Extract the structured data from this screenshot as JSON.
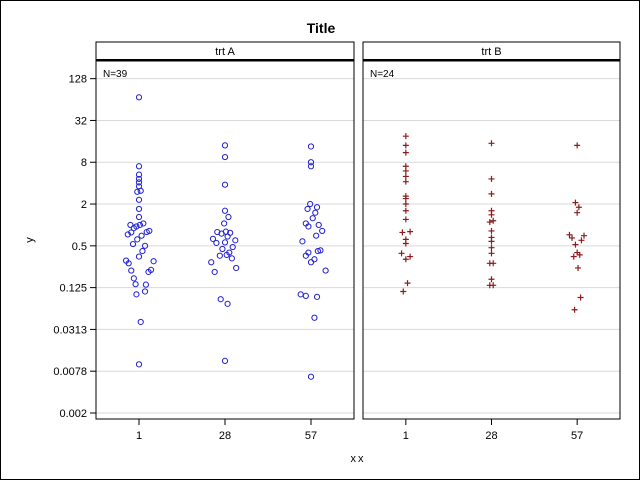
{
  "chart_data": {
    "type": "scatter",
    "title": "Title",
    "xlabel": "xx",
    "ylabel": "y",
    "y_scale": "log2",
    "ylim": [
      0.0016,
      230
    ],
    "y_ticks": [
      {
        "value": 0.001953125,
        "label": "0.002"
      },
      {
        "value": 0.0078125,
        "label": "0.0078"
      },
      {
        "value": 0.03125,
        "label": "0.0313"
      },
      {
        "value": 0.125,
        "label": "0.125"
      },
      {
        "value": 0.5,
        "label": "0.5"
      },
      {
        "value": 2,
        "label": "2"
      },
      {
        "value": 8,
        "label": "8"
      },
      {
        "value": 32,
        "label": "32"
      },
      {
        "value": 128,
        "label": "128"
      }
    ],
    "x_categories": [
      "1",
      "28",
      "57"
    ],
    "grid": true,
    "panels": [
      {
        "name": "trt A",
        "n_label": "N=39",
        "marker": "circle",
        "color": "#1f1fd6",
        "points": [
          {
            "x": "1",
            "y": 0.306,
            "dx": -0.15
          },
          {
            "x": "1",
            "y": 0.28,
            "dx": -0.12
          },
          {
            "x": "1",
            "y": 0.22,
            "dx": -0.09
          },
          {
            "x": "1",
            "y": 0.17,
            "dx": -0.06
          },
          {
            "x": "1",
            "y": 0.14,
            "dx": -0.04
          },
          {
            "x": "1",
            "y": 0.1,
            "dx": -0.03
          },
          {
            "x": "1",
            "y": 0.04,
            "dx": 0.02
          },
          {
            "x": "1",
            "y": 0.0098,
            "dx": 0.0
          },
          {
            "x": "1",
            "y": 0.11,
            "dx": 0.07
          },
          {
            "x": "1",
            "y": 0.138,
            "dx": 0.08
          },
          {
            "x": "1",
            "y": 0.21,
            "dx": 0.11
          },
          {
            "x": "1",
            "y": 0.225,
            "dx": 0.14
          },
          {
            "x": "1",
            "y": 0.3,
            "dx": 0.17
          },
          {
            "x": "1",
            "y": 0.35,
            "dx": 0.0
          },
          {
            "x": "1",
            "y": 0.42,
            "dx": 0.04
          },
          {
            "x": "1",
            "y": 0.5,
            "dx": 0.07
          },
          {
            "x": "1",
            "y": 0.53,
            "dx": -0.07
          },
          {
            "x": "1",
            "y": 0.62,
            "dx": -0.02
          },
          {
            "x": "1",
            "y": 0.7,
            "dx": 0.03
          },
          {
            "x": "1",
            "y": 0.78,
            "dx": -0.09
          },
          {
            "x": "1",
            "y": 0.79,
            "dx": 0.09
          },
          {
            "x": "1",
            "y": 0.82,
            "dx": 0.12
          },
          {
            "x": "1",
            "y": 0.73,
            "dx": -0.13
          },
          {
            "x": "1",
            "y": 0.9,
            "dx": -0.06
          },
          {
            "x": "1",
            "y": 0.95,
            "dx": -0.03
          },
          {
            "x": "1",
            "y": 1.0,
            "dx": 0.01
          },
          {
            "x": "1",
            "y": 1.05,
            "dx": 0.05
          },
          {
            "x": "1",
            "y": 1.0,
            "dx": -0.1
          },
          {
            "x": "1",
            "y": 1.3,
            "dx": 0.0
          },
          {
            "x": "1",
            "y": 1.7,
            "dx": 0.0
          },
          {
            "x": "1",
            "y": 2.3,
            "dx": 0.0
          },
          {
            "x": "1",
            "y": 3.0,
            "dx": -0.02
          },
          {
            "x": "1",
            "y": 3.1,
            "dx": 0.02
          },
          {
            "x": "1",
            "y": 3.6,
            "dx": 0.0
          },
          {
            "x": "1",
            "y": 4.1,
            "dx": 0.0
          },
          {
            "x": "1",
            "y": 4.6,
            "dx": 0.0
          },
          {
            "x": "1",
            "y": 5.3,
            "dx": 0.0
          },
          {
            "x": "1",
            "y": 7.0,
            "dx": 0.0
          },
          {
            "x": "1",
            "y": 69,
            "dx": 0.0
          },
          {
            "x": "28",
            "y": 0.011,
            "dx": 0.0
          },
          {
            "x": "28",
            "y": 0.085,
            "dx": -0.05
          },
          {
            "x": "28",
            "y": 0.073,
            "dx": 0.03
          },
          {
            "x": "28",
            "y": 0.21,
            "dx": -0.12
          },
          {
            "x": "28",
            "y": 0.24,
            "dx": 0.13
          },
          {
            "x": "28",
            "y": 0.29,
            "dx": -0.16
          },
          {
            "x": "28",
            "y": 0.33,
            "dx": 0.08
          },
          {
            "x": "28",
            "y": 0.36,
            "dx": -0.06
          },
          {
            "x": "28",
            "y": 0.37,
            "dx": 0.02
          },
          {
            "x": "28",
            "y": 0.4,
            "dx": 0.05
          },
          {
            "x": "28",
            "y": 0.45,
            "dx": -0.03
          },
          {
            "x": "28",
            "y": 0.48,
            "dx": 0.09
          },
          {
            "x": "28",
            "y": 0.55,
            "dx": -0.1
          },
          {
            "x": "28",
            "y": 0.56,
            "dx": 0.0
          },
          {
            "x": "28",
            "y": 0.6,
            "dx": 0.12
          },
          {
            "x": "28",
            "y": 0.63,
            "dx": -0.14
          },
          {
            "x": "28",
            "y": 0.68,
            "dx": 0.03
          },
          {
            "x": "28",
            "y": 0.75,
            "dx": -0.04
          },
          {
            "x": "28",
            "y": 0.77,
            "dx": 0.06
          },
          {
            "x": "28",
            "y": 0.79,
            "dx": -0.09
          },
          {
            "x": "28",
            "y": 0.8,
            "dx": 0.01
          },
          {
            "x": "28",
            "y": 1.05,
            "dx": -0.01
          },
          {
            "x": "28",
            "y": 1.3,
            "dx": 0.04
          },
          {
            "x": "28",
            "y": 1.6,
            "dx": 0.0
          },
          {
            "x": "28",
            "y": 3.8,
            "dx": 0.0
          },
          {
            "x": "28",
            "y": 9.5,
            "dx": 0.0
          },
          {
            "x": "28",
            "y": 14,
            "dx": 0.0
          },
          {
            "x": "57",
            "y": 0.0065,
            "dx": 0.0
          },
          {
            "x": "57",
            "y": 0.046,
            "dx": 0.04
          },
          {
            "x": "57",
            "y": 0.095,
            "dx": -0.06
          },
          {
            "x": "57",
            "y": 0.092,
            "dx": 0.07
          },
          {
            "x": "57",
            "y": 0.1,
            "dx": -0.12
          },
          {
            "x": "57",
            "y": 0.22,
            "dx": 0.17
          },
          {
            "x": "57",
            "y": 0.29,
            "dx": 0.0
          },
          {
            "x": "57",
            "y": 0.32,
            "dx": 0.04
          },
          {
            "x": "57",
            "y": 0.36,
            "dx": -0.06
          },
          {
            "x": "57",
            "y": 0.42,
            "dx": 0.08
          },
          {
            "x": "57",
            "y": 0.4,
            "dx": -0.03
          },
          {
            "x": "57",
            "y": 0.43,
            "dx": 0.11
          },
          {
            "x": "57",
            "y": 0.58,
            "dx": -0.1
          },
          {
            "x": "57",
            "y": 0.7,
            "dx": 0.06
          },
          {
            "x": "57",
            "y": 0.82,
            "dx": 0.13
          },
          {
            "x": "57",
            "y": 0.95,
            "dx": -0.03
          },
          {
            "x": "57",
            "y": 1.0,
            "dx": 0.09
          },
          {
            "x": "57",
            "y": 1.05,
            "dx": -0.06
          },
          {
            "x": "57",
            "y": 1.25,
            "dx": 0.02
          },
          {
            "x": "57",
            "y": 1.5,
            "dx": 0.05
          },
          {
            "x": "57",
            "y": 1.7,
            "dx": -0.04
          },
          {
            "x": "57",
            "y": 1.8,
            "dx": 0.07
          },
          {
            "x": "57",
            "y": 2.0,
            "dx": -0.01
          },
          {
            "x": "57",
            "y": 7.0,
            "dx": 0.0
          },
          {
            "x": "57",
            "y": 8.0,
            "dx": 0.0
          },
          {
            "x": "57",
            "y": 13.5,
            "dx": 0.0
          }
        ]
      },
      {
        "name": "trt B",
        "n_label": "N=24",
        "marker": "plus",
        "color": "#8b1c1c",
        "points": [
          {
            "x": "1",
            "y": 0.11,
            "dx": -0.03
          },
          {
            "x": "1",
            "y": 0.145,
            "dx": 0.02
          },
          {
            "x": "1",
            "y": 0.32,
            "dx": 0.0
          },
          {
            "x": "1",
            "y": 0.35,
            "dx": 0.05
          },
          {
            "x": "1",
            "y": 0.39,
            "dx": -0.05
          },
          {
            "x": "1",
            "y": 0.54,
            "dx": 0.0
          },
          {
            "x": "1",
            "y": 0.62,
            "dx": 0.0
          },
          {
            "x": "1",
            "y": 0.78,
            "dx": -0.04
          },
          {
            "x": "1",
            "y": 0.8,
            "dx": 0.05
          },
          {
            "x": "1",
            "y": 1.2,
            "dx": 0.0
          },
          {
            "x": "1",
            "y": 1.6,
            "dx": 0.0
          },
          {
            "x": "1",
            "y": 2.0,
            "dx": 0.0
          },
          {
            "x": "1",
            "y": 2.4,
            "dx": 0.0
          },
          {
            "x": "1",
            "y": 2.6,
            "dx": 0.0
          },
          {
            "x": "1",
            "y": 4.2,
            "dx": 0.0
          },
          {
            "x": "1",
            "y": 5.0,
            "dx": 0.0
          },
          {
            "x": "1",
            "y": 6.0,
            "dx": 0.0
          },
          {
            "x": "1",
            "y": 7.0,
            "dx": 0.0
          },
          {
            "x": "1",
            "y": 11,
            "dx": 0.0
          },
          {
            "x": "1",
            "y": 14,
            "dx": 0.0
          },
          {
            "x": "1",
            "y": 19,
            "dx": 0.0
          },
          {
            "x": "28",
            "y": 0.135,
            "dx": -0.02
          },
          {
            "x": "28",
            "y": 0.135,
            "dx": 0.02
          },
          {
            "x": "28",
            "y": 0.165,
            "dx": 0.0
          },
          {
            "x": "28",
            "y": 0.28,
            "dx": -0.02
          },
          {
            "x": "28",
            "y": 0.28,
            "dx": 0.02
          },
          {
            "x": "28",
            "y": 0.39,
            "dx": 0.0
          },
          {
            "x": "28",
            "y": 0.47,
            "dx": 0.0
          },
          {
            "x": "28",
            "y": 0.58,
            "dx": 0.0
          },
          {
            "x": "28",
            "y": 0.66,
            "dx": 0.0
          },
          {
            "x": "28",
            "y": 0.82,
            "dx": 0.0
          },
          {
            "x": "28",
            "y": 1.1,
            "dx": -0.02
          },
          {
            "x": "28",
            "y": 1.15,
            "dx": 0.02
          },
          {
            "x": "28",
            "y": 1.4,
            "dx": 0.0
          },
          {
            "x": "28",
            "y": 1.6,
            "dx": 0.0
          },
          {
            "x": "28",
            "y": 2.8,
            "dx": 0.0
          },
          {
            "x": "28",
            "y": 4.6,
            "dx": 0.0
          },
          {
            "x": "28",
            "y": 15,
            "dx": 0.0
          },
          {
            "x": "57",
            "y": 0.06,
            "dx": -0.03
          },
          {
            "x": "57",
            "y": 0.09,
            "dx": 0.04
          },
          {
            "x": "57",
            "y": 0.24,
            "dx": 0.01
          },
          {
            "x": "57",
            "y": 0.35,
            "dx": -0.04
          },
          {
            "x": "57",
            "y": 0.37,
            "dx": 0.03
          },
          {
            "x": "57",
            "y": 0.4,
            "dx": 0.0
          },
          {
            "x": "57",
            "y": 0.52,
            "dx": -0.02
          },
          {
            "x": "57",
            "y": 0.6,
            "dx": 0.05
          },
          {
            "x": "57",
            "y": 0.65,
            "dx": -0.06
          },
          {
            "x": "57",
            "y": 0.7,
            "dx": 0.08
          },
          {
            "x": "57",
            "y": 0.72,
            "dx": -0.09
          },
          {
            "x": "57",
            "y": 1.5,
            "dx": 0.0
          },
          {
            "x": "57",
            "y": 1.8,
            "dx": 0.02
          },
          {
            "x": "57",
            "y": 2.1,
            "dx": -0.02
          },
          {
            "x": "57",
            "y": 14,
            "dx": 0.0
          }
        ]
      }
    ]
  }
}
